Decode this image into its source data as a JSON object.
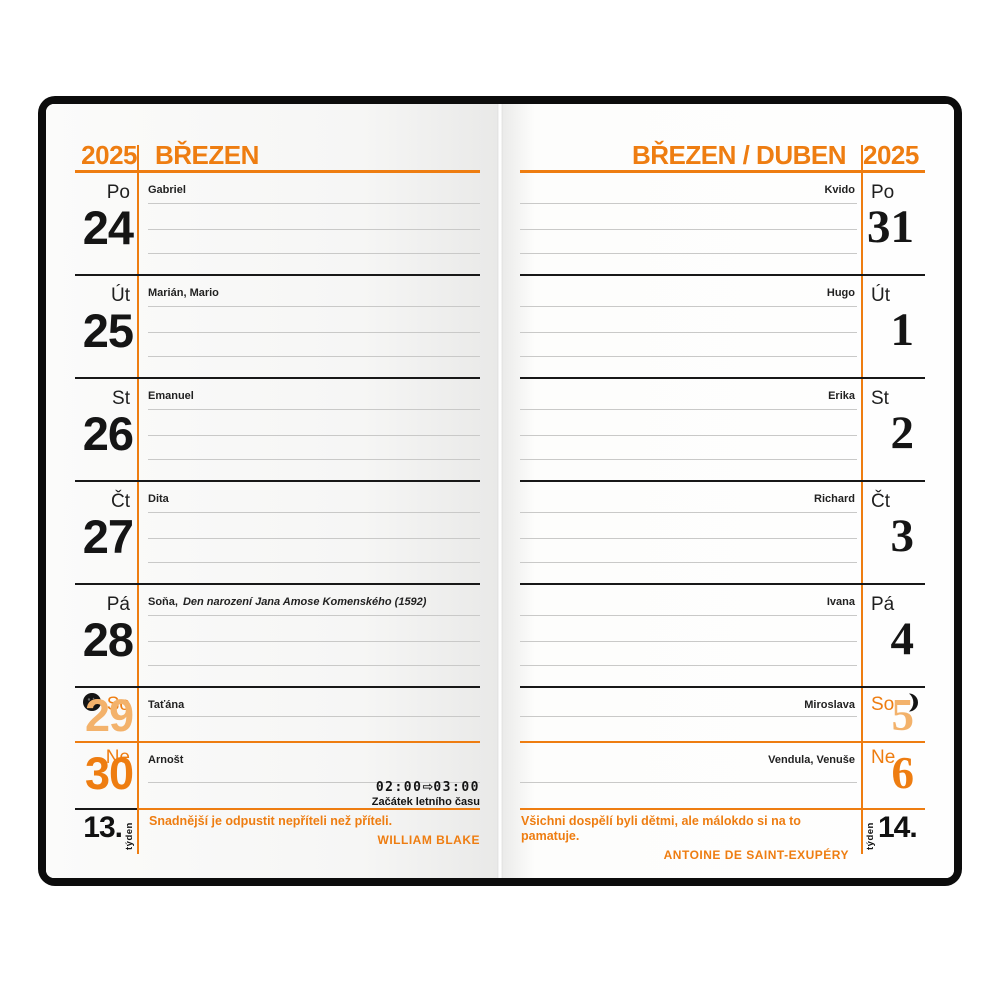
{
  "colors": {
    "accent": "#ee7d11",
    "accent_light": "#f3b26b",
    "cover": "#0c0c0c",
    "line_light": "#c9c9c8",
    "line_dark": "#181818"
  },
  "pages": [
    {
      "side": "left",
      "year": "2025",
      "month_title": "BŘEZEN",
      "week": {
        "number": "13.",
        "unit": "týden"
      },
      "quote": {
        "text": "Snadnější je odpustit nepříteli než příteli.",
        "author": "WILLIAM BLAKE"
      },
      "days": [
        {
          "abbr": "Po",
          "number": "24",
          "names": "Gabriel",
          "type": "weekday"
        },
        {
          "abbr": "Út",
          "number": "25",
          "names": "Marián, Mario",
          "type": "weekday"
        },
        {
          "abbr": "St",
          "number": "26",
          "names": "Emanuel",
          "type": "weekday"
        },
        {
          "abbr": "Čt",
          "number": "27",
          "names": "Dita",
          "type": "weekday"
        },
        {
          "abbr": "Pá",
          "number": "28",
          "names": "Soňa,",
          "note": "Den narození Jana Amose Komenského (1592)",
          "type": "weekday"
        },
        {
          "abbr": "So",
          "number": "29",
          "names": "Taťána",
          "type": "saturday",
          "moon": "new-moon"
        },
        {
          "abbr": "Ne",
          "number": "30",
          "names": "Arnošt",
          "type": "sunday",
          "time_change": {
            "from": "02:00",
            "arrow": "⇨",
            "to": "03:00",
            "label": "Začátek letního času"
          }
        }
      ]
    },
    {
      "side": "right",
      "year": "2025",
      "month_title": "BŘEZEN / DUBEN",
      "week": {
        "number": "14.",
        "unit": "týden"
      },
      "quote": {
        "text": "Všichni dospělí byli dětmi, ale málokdo si na to pamatuje.",
        "author": "ANTOINE DE SAINT-EXUPÉRY"
      },
      "days": [
        {
          "abbr": "Po",
          "number": "31",
          "names": "Kvido",
          "type": "weekday"
        },
        {
          "abbr": "Út",
          "number": "1",
          "names": "Hugo",
          "type": "weekday"
        },
        {
          "abbr": "St",
          "number": "2",
          "names": "Erika",
          "type": "weekday"
        },
        {
          "abbr": "Čt",
          "number": "3",
          "names": "Richard",
          "type": "weekday"
        },
        {
          "abbr": "Pá",
          "number": "4",
          "names": "Ivana",
          "type": "weekday"
        },
        {
          "abbr": "So",
          "number": "5",
          "names": "Miroslava",
          "type": "saturday",
          "moon": "first-quarter-moon"
        },
        {
          "abbr": "Ne",
          "number": "6",
          "names": "Vendula, Venuše",
          "type": "sunday"
        }
      ]
    }
  ]
}
